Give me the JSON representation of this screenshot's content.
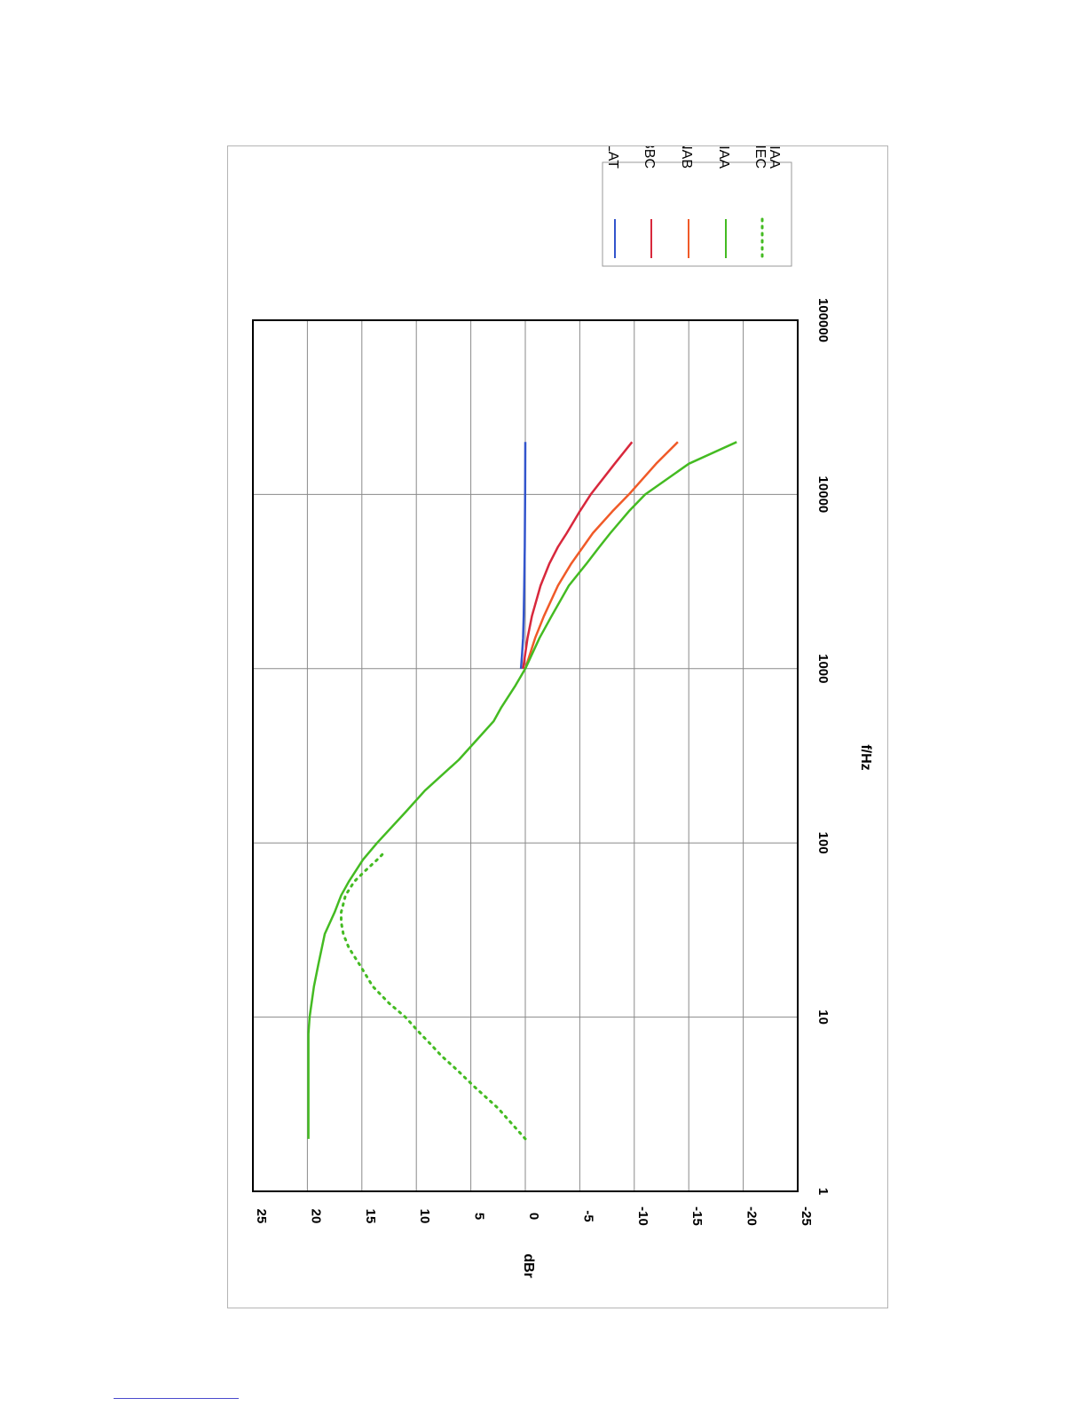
{
  "chart_data": {
    "type": "line",
    "orientation": "rotated 90° clockwise on page",
    "xlabel": "f/Hz",
    "ylabel": "dBr",
    "x_scale": "log",
    "xlim": [
      1,
      100000
    ],
    "ylim": [
      -25,
      25
    ],
    "x_ticks": [
      "1",
      "10",
      "100",
      "1000",
      "10000",
      "100000"
    ],
    "y_ticks": [
      "25",
      "20",
      "15",
      "10",
      "5",
      "0",
      "-5",
      "-10",
      "-15",
      "-20",
      "-25"
    ],
    "grid": true,
    "legend_position": "outside, beside the 100000 end of the frequency axis",
    "series": [
      {
        "name": "FLAT",
        "color": "#3355cc",
        "dash": "solid",
        "points": [
          [
            1000,
            0.4
          ],
          [
            1200,
            0.3
          ],
          [
            1500,
            0.2
          ],
          [
            2000,
            0.15
          ],
          [
            3000,
            0.1
          ],
          [
            5000,
            0.05
          ],
          [
            10000,
            0.02
          ],
          [
            20000,
            0
          ]
        ]
      },
      {
        "name": "BBC",
        "color": "#d8283c",
        "dash": "solid",
        "points": [
          [
            1000,
            0.2
          ],
          [
            1500,
            -0.2
          ],
          [
            2000,
            -0.6
          ],
          [
            3000,
            -1.4
          ],
          [
            4000,
            -2.2
          ],
          [
            5000,
            -3.0
          ],
          [
            6000,
            -3.8
          ],
          [
            8000,
            -5.0
          ],
          [
            10000,
            -6.0
          ],
          [
            15000,
            -8.2
          ],
          [
            20000,
            -9.8
          ]
        ]
      },
      {
        "name": "NAB",
        "color": "#f05a28",
        "dash": "solid",
        "points": [
          [
            1000,
            0
          ],
          [
            1500,
            -0.9
          ],
          [
            2000,
            -1.7
          ],
          [
            3000,
            -3.0
          ],
          [
            4000,
            -4.2
          ],
          [
            6000,
            -6.2
          ],
          [
            8000,
            -8.0
          ],
          [
            10000,
            -9.5
          ],
          [
            15000,
            -12.0
          ],
          [
            20000,
            -14.0
          ]
        ]
      },
      {
        "name": "RIAA",
        "color": "#44bb22",
        "dash": "solid",
        "points": [
          [
            2,
            19.9
          ],
          [
            5,
            19.9
          ],
          [
            8,
            19.9
          ],
          [
            10,
            19.8
          ],
          [
            15,
            19.4
          ],
          [
            20,
            19.0
          ],
          [
            30,
            18.4
          ],
          [
            40,
            17.5
          ],
          [
            50,
            16.9
          ],
          [
            60,
            16.2
          ],
          [
            80,
            14.9
          ],
          [
            100,
            13.6
          ],
          [
            150,
            11.0
          ],
          [
            200,
            9.2
          ],
          [
            300,
            6.1
          ],
          [
            400,
            4.3
          ],
          [
            500,
            2.9
          ],
          [
            600,
            2.2
          ],
          [
            800,
            0.9
          ],
          [
            1000,
            0
          ],
          [
            1500,
            -1.3
          ],
          [
            2000,
            -2.4
          ],
          [
            3000,
            -4.0
          ],
          [
            4000,
            -5.6
          ],
          [
            5000,
            -6.8
          ],
          [
            6000,
            -7.8
          ],
          [
            8000,
            -9.5
          ],
          [
            10000,
            -11.0
          ],
          [
            15000,
            -15.0
          ],
          [
            20000,
            -19.4
          ]
        ]
      },
      {
        "name": "IEC RIAA",
        "color": "#44bb22",
        "dash": "dotted",
        "points": [
          [
            2,
            0
          ],
          [
            3,
            2.5
          ],
          [
            4,
            4.7
          ],
          [
            5,
            6.3
          ],
          [
            6,
            7.7
          ],
          [
            7,
            8.7
          ],
          [
            8,
            9.6
          ],
          [
            10,
            11.0
          ],
          [
            12,
            12.5
          ],
          [
            15,
            14.0
          ],
          [
            20,
            15.2
          ],
          [
            25,
            16.2
          ],
          [
            30,
            16.7
          ],
          [
            35,
            16.9
          ],
          [
            40,
            16.9
          ],
          [
            50,
            16.5
          ],
          [
            60,
            15.7
          ],
          [
            70,
            14.6
          ],
          [
            80,
            13.6
          ],
          [
            90,
            12.8
          ]
        ]
      }
    ]
  }
}
